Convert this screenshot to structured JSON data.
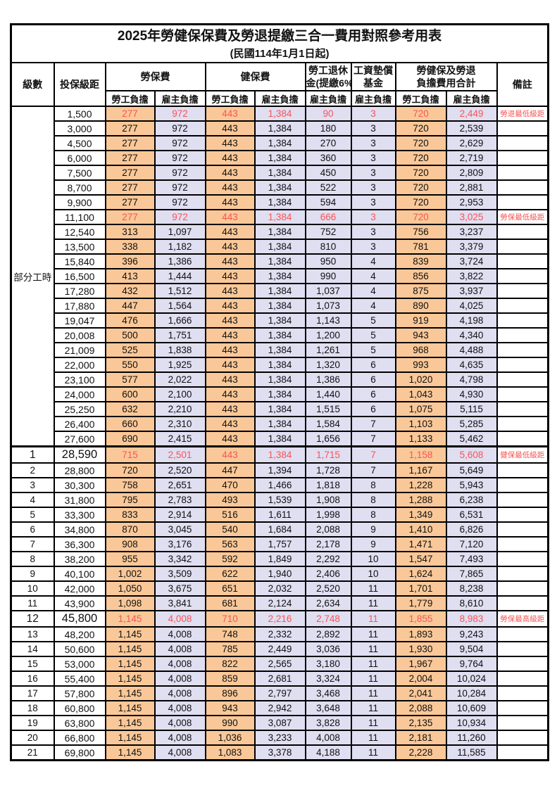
{
  "title": "2025年勞健保保費及勞退提繳三合一費用對照參考用表",
  "subtitle": "(民國114年1月1日起)",
  "colors": {
    "worker_bg": "#FAC898",
    "employer_bg": "#E0DEF1",
    "highlight_red": "#F85454",
    "border": "#000000"
  },
  "header": {
    "level": "級數",
    "bracket": "投保級距",
    "labor_fee": "勞保費",
    "health_fee": "健保費",
    "pension_line1": "勞工退休",
    "pension_line2": "金(提繳6%)",
    "wage_line1": "工資墊償",
    "wage_line2": "基金",
    "total_line1": "勞健保及勞退",
    "total_line2": "負擔費用合計",
    "remark": "備註",
    "worker": "勞工負擔",
    "employer": "雇主負擔"
  },
  "part_time_label": "部分工時",
  "row_format": [
    "level",
    "bracket",
    "labor_worker",
    "labor_employer",
    "health_worker",
    "health_employer",
    "pension_employer",
    "wage_fund_employer",
    "total_worker",
    "total_employer",
    "remark",
    "flags"
  ],
  "rows": [
    [
      "",
      "1,500",
      "277",
      "972",
      "443",
      "1,384",
      "90",
      "3",
      "720",
      "2,449",
      "勞退最低級距",
      "hl"
    ],
    [
      "",
      "3,000",
      "277",
      "972",
      "443",
      "1,384",
      "180",
      "3",
      "720",
      "2,539",
      "",
      ""
    ],
    [
      "",
      "4,500",
      "277",
      "972",
      "443",
      "1,384",
      "270",
      "3",
      "720",
      "2,629",
      "",
      ""
    ],
    [
      "",
      "6,000",
      "277",
      "972",
      "443",
      "1,384",
      "360",
      "3",
      "720",
      "2,719",
      "",
      ""
    ],
    [
      "",
      "7,500",
      "277",
      "972",
      "443",
      "1,384",
      "450",
      "3",
      "720",
      "2,809",
      "",
      ""
    ],
    [
      "",
      "8,700",
      "277",
      "972",
      "443",
      "1,384",
      "522",
      "3",
      "720",
      "2,881",
      "",
      ""
    ],
    [
      "",
      "9,900",
      "277",
      "972",
      "443",
      "1,384",
      "594",
      "3",
      "720",
      "2,953",
      "",
      ""
    ],
    [
      "",
      "11,100",
      "277",
      "972",
      "443",
      "1,384",
      "666",
      "3",
      "720",
      "3,025",
      "勞保最低級距",
      "hl"
    ],
    [
      "",
      "12,540",
      "313",
      "1,097",
      "443",
      "1,384",
      "752",
      "3",
      "756",
      "3,237",
      "",
      ""
    ],
    [
      "",
      "13,500",
      "338",
      "1,182",
      "443",
      "1,384",
      "810",
      "3",
      "781",
      "3,379",
      "",
      ""
    ],
    [
      "",
      "15,840",
      "396",
      "1,386",
      "443",
      "1,384",
      "950",
      "4",
      "839",
      "3,724",
      "",
      ""
    ],
    [
      "",
      "16,500",
      "413",
      "1,444",
      "443",
      "1,384",
      "990",
      "4",
      "856",
      "3,822",
      "",
      ""
    ],
    [
      "",
      "17,280",
      "432",
      "1,512",
      "443",
      "1,384",
      "1,037",
      "4",
      "875",
      "3,937",
      "",
      ""
    ],
    [
      "",
      "17,880",
      "447",
      "1,564",
      "443",
      "1,384",
      "1,073",
      "4",
      "890",
      "4,025",
      "",
      ""
    ],
    [
      "",
      "19,047",
      "476",
      "1,666",
      "443",
      "1,384",
      "1,143",
      "5",
      "919",
      "4,198",
      "",
      ""
    ],
    [
      "",
      "20,008",
      "500",
      "1,751",
      "443",
      "1,384",
      "1,200",
      "5",
      "943",
      "4,340",
      "",
      ""
    ],
    [
      "",
      "21,009",
      "525",
      "1,838",
      "443",
      "1,384",
      "1,261",
      "5",
      "968",
      "4,488",
      "",
      ""
    ],
    [
      "",
      "22,000",
      "550",
      "1,925",
      "443",
      "1,384",
      "1,320",
      "6",
      "993",
      "4,635",
      "",
      ""
    ],
    [
      "",
      "23,100",
      "577",
      "2,022",
      "443",
      "1,384",
      "1,386",
      "6",
      "1,020",
      "4,798",
      "",
      ""
    ],
    [
      "",
      "24,000",
      "600",
      "2,100",
      "443",
      "1,384",
      "1,440",
      "6",
      "1,043",
      "4,930",
      "",
      ""
    ],
    [
      "",
      "25,250",
      "632",
      "2,210",
      "443",
      "1,384",
      "1,515",
      "6",
      "1,075",
      "5,115",
      "",
      ""
    ],
    [
      "",
      "26,400",
      "660",
      "2,310",
      "443",
      "1,384",
      "1,584",
      "7",
      "1,103",
      "5,285",
      "",
      ""
    ],
    [
      "",
      "27,600",
      "690",
      "2,415",
      "443",
      "1,384",
      "1,656",
      "7",
      "1,133",
      "5,462",
      "",
      ""
    ],
    [
      "1",
      "28,590",
      "715",
      "2,501",
      "443",
      "1,384",
      "1,715",
      "7",
      "1,158",
      "5,608",
      "健保最低級距",
      "hl big sep"
    ],
    [
      "2",
      "28,800",
      "720",
      "2,520",
      "447",
      "1,394",
      "1,728",
      "7",
      "1,167",
      "5,649",
      "",
      ""
    ],
    [
      "3",
      "30,300",
      "758",
      "2,651",
      "470",
      "1,466",
      "1,818",
      "8",
      "1,228",
      "5,943",
      "",
      ""
    ],
    [
      "4",
      "31,800",
      "795",
      "2,783",
      "493",
      "1,539",
      "1,908",
      "8",
      "1,288",
      "6,238",
      "",
      ""
    ],
    [
      "5",
      "33,300",
      "833",
      "2,914",
      "516",
      "1,611",
      "1,998",
      "8",
      "1,349",
      "6,531",
      "",
      ""
    ],
    [
      "6",
      "34,800",
      "870",
      "3,045",
      "540",
      "1,684",
      "2,088",
      "9",
      "1,410",
      "6,826",
      "",
      ""
    ],
    [
      "7",
      "36,300",
      "908",
      "3,176",
      "563",
      "1,757",
      "2,178",
      "9",
      "1,471",
      "7,120",
      "",
      ""
    ],
    [
      "8",
      "38,200",
      "955",
      "3,342",
      "592",
      "1,849",
      "2,292",
      "10",
      "1,547",
      "7,493",
      "",
      ""
    ],
    [
      "9",
      "40,100",
      "1,002",
      "3,509",
      "622",
      "1,940",
      "2,406",
      "10",
      "1,624",
      "7,865",
      "",
      ""
    ],
    [
      "10",
      "42,000",
      "1,050",
      "3,675",
      "651",
      "2,032",
      "2,520",
      "11",
      "1,701",
      "8,238",
      "",
      ""
    ],
    [
      "11",
      "43,900",
      "1,098",
      "3,841",
      "681",
      "2,124",
      "2,634",
      "11",
      "1,779",
      "8,610",
      "",
      ""
    ],
    [
      "12",
      "45,800",
      "1,145",
      "4,008",
      "710",
      "2,216",
      "2,748",
      "11",
      "1,855",
      "8,983",
      "勞保最高級距",
      "hl big"
    ],
    [
      "13",
      "48,200",
      "1,145",
      "4,008",
      "748",
      "2,332",
      "2,892",
      "11",
      "1,893",
      "9,243",
      "",
      ""
    ],
    [
      "14",
      "50,600",
      "1,145",
      "4,008",
      "785",
      "2,449",
      "3,036",
      "11",
      "1,930",
      "9,504",
      "",
      ""
    ],
    [
      "15",
      "53,000",
      "1,145",
      "4,008",
      "822",
      "2,565",
      "3,180",
      "11",
      "1,967",
      "9,764",
      "",
      ""
    ],
    [
      "16",
      "55,400",
      "1,145",
      "4,008",
      "859",
      "2,681",
      "3,324",
      "11",
      "2,004",
      "10,024",
      "",
      ""
    ],
    [
      "17",
      "57,800",
      "1,145",
      "4,008",
      "896",
      "2,797",
      "3,468",
      "11",
      "2,041",
      "10,284",
      "",
      ""
    ],
    [
      "18",
      "60,800",
      "1,145",
      "4,008",
      "943",
      "2,942",
      "3,648",
      "11",
      "2,088",
      "10,609",
      "",
      ""
    ],
    [
      "19",
      "63,800",
      "1,145",
      "4,008",
      "990",
      "3,087",
      "3,828",
      "11",
      "2,135",
      "10,934",
      "",
      ""
    ],
    [
      "20",
      "66,800",
      "1,145",
      "4,008",
      "1,036",
      "3,233",
      "4,008",
      "11",
      "2,181",
      "11,260",
      "",
      ""
    ],
    [
      "21",
      "69,800",
      "1,145",
      "4,008",
      "1,083",
      "3,378",
      "4,188",
      "11",
      "2,228",
      "11,585",
      "",
      ""
    ]
  ]
}
